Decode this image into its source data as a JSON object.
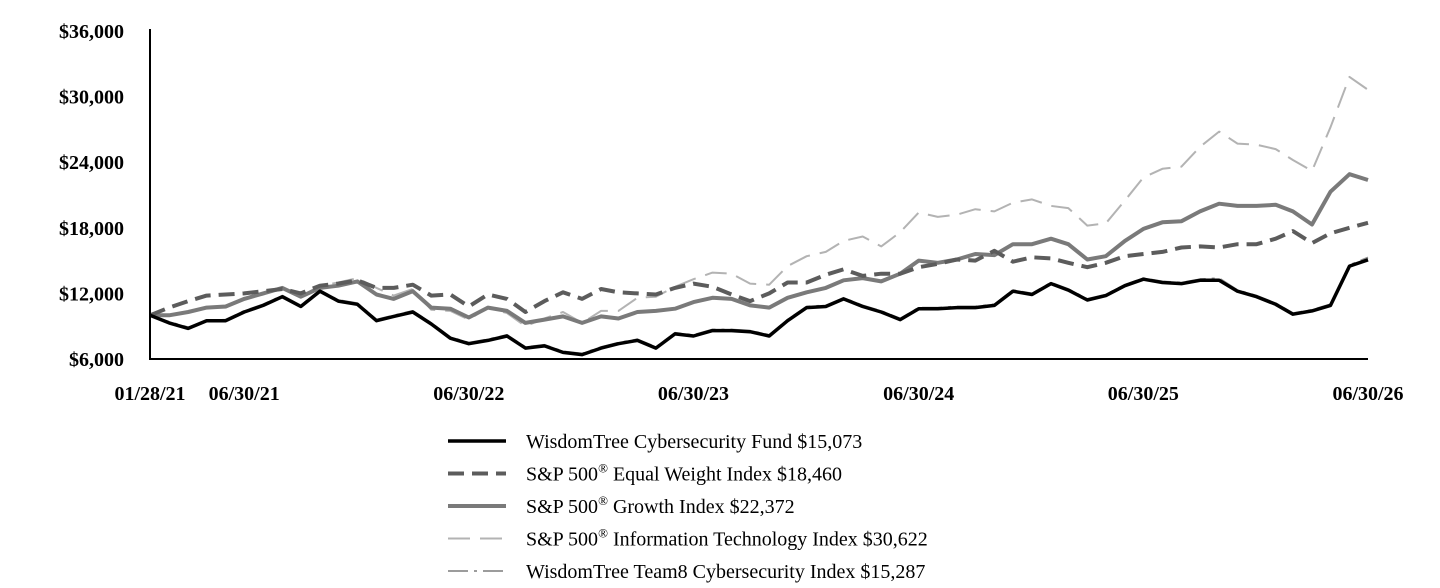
{
  "chart_data": {
    "type": "line",
    "title": "",
    "xlabel": "",
    "ylabel": "",
    "x_ticks": [
      "01/28/21",
      "06/30/21",
      "06/30/22",
      "06/30/23",
      "06/30/24",
      "06/30/25",
      "06/30/26"
    ],
    "x_tick_dates": [
      "2021-01-28",
      "2021-06-30",
      "2022-06-30",
      "2023-06-30",
      "2024-06-30",
      "2025-06-30",
      "2026-06-30"
    ],
    "y_ticks": [
      "$6,000",
      "$12,000",
      "$18,000",
      "$24,000",
      "$30,000",
      "$36,000"
    ],
    "y_tick_values": [
      6000,
      12000,
      18000,
      24000,
      30000,
      36000
    ],
    "xlim": [
      "2021-01-28",
      "2026-06-30"
    ],
    "ylim": [
      6000,
      36000
    ],
    "grid": false,
    "legend_position": "bottom",
    "x": [
      "2021-01-28",
      "2021-02-28",
      "2021-03-31",
      "2021-04-30",
      "2021-05-31",
      "2021-06-30",
      "2021-07-31",
      "2021-08-31",
      "2021-09-30",
      "2021-10-31",
      "2021-11-30",
      "2021-12-31",
      "2022-01-31",
      "2022-02-28",
      "2022-03-31",
      "2022-04-30",
      "2022-05-31",
      "2022-06-30",
      "2022-07-31",
      "2022-08-31",
      "2022-09-30",
      "2022-10-31",
      "2022-11-30",
      "2022-12-31",
      "2023-01-31",
      "2023-02-28",
      "2023-03-31",
      "2023-04-30",
      "2023-05-31",
      "2023-06-30",
      "2023-07-31",
      "2023-08-31",
      "2023-09-30",
      "2023-10-31",
      "2023-11-30",
      "2023-12-31",
      "2024-01-31",
      "2024-02-29",
      "2024-03-31",
      "2024-04-30",
      "2024-05-31",
      "2024-06-30",
      "2024-07-31",
      "2024-08-31",
      "2024-09-30",
      "2024-10-31",
      "2024-11-30",
      "2024-12-31",
      "2025-01-31",
      "2025-02-28",
      "2025-03-31",
      "2025-04-30",
      "2025-05-31",
      "2025-06-30",
      "2025-07-31",
      "2025-08-31",
      "2025-09-30",
      "2025-10-31",
      "2025-11-30",
      "2025-12-31",
      "2026-01-31",
      "2026-02-28",
      "2026-03-31",
      "2026-04-30",
      "2026-05-31",
      "2026-06-30"
    ],
    "series": [
      {
        "name": "WisdomTree Cybersecurity Fund",
        "legend_label_before_sup": "WisdomTree Cybersecurity Fund $15,073",
        "legend_sup": "",
        "legend_label_after_sup": "",
        "color": "#000000",
        "stroke_width": 3.5,
        "dash": "",
        "values": [
          10000,
          9300,
          8800,
          9500,
          9500,
          10300,
          10900,
          11700,
          10800,
          12200,
          11300,
          11000,
          9500,
          9900,
          10300,
          9200,
          7900,
          7400,
          7700,
          8100,
          7000,
          7200,
          6600,
          6400,
          7000,
          7400,
          7700,
          7000,
          8300,
          8100,
          8600,
          8600,
          8500,
          8100,
          9500,
          10700,
          10800,
          11500,
          10800,
          10300,
          9600,
          10600,
          10600,
          10700,
          10700,
          10900,
          12200,
          11900,
          12900,
          12300,
          11400,
          11800,
          12700,
          13300,
          13000,
          12900,
          13200,
          13200,
          12200,
          11700,
          11000,
          10100,
          10400,
          10900,
          14500,
          15073
        ]
      },
      {
        "name": "S&P 500® Equal Weight Index",
        "legend_label_before_sup": "S&P 500",
        "legend_sup": "®",
        "legend_label_after_sup": " Equal Weight Index $18,460",
        "color": "#5c5c5c",
        "stroke_width": 4,
        "dash": "16,8",
        "values": [
          10000,
          10700,
          11300,
          11800,
          11900,
          12000,
          12200,
          12400,
          12000,
          12700,
          12900,
          13200,
          12500,
          12500,
          12800,
          11800,
          11900,
          10800,
          11900,
          11500,
          10300,
          11300,
          12100,
          11500,
          12400,
          12100,
          12000,
          11900,
          12500,
          12900,
          12600,
          11900,
          11300,
          12000,
          13000,
          13000,
          13700,
          14200,
          13600,
          13800,
          13800,
          14400,
          14700,
          15100,
          15000,
          15900,
          14900,
          15300,
          15200,
          14800,
          14400,
          14800,
          15400,
          15600,
          15800,
          16200,
          16300,
          16200,
          16500,
          16500,
          17000,
          17700,
          16600,
          17500,
          18000,
          18460
        ]
      },
      {
        "name": "S&P 500® Growth Index",
        "legend_label_before_sup": "S&P 500",
        "legend_sup": "®",
        "legend_label_after_sup": " Growth Index $22,372",
        "color": "#7a7a7a",
        "stroke_width": 4,
        "dash": "",
        "values": [
          10000,
          10000,
          10300,
          10700,
          10800,
          11500,
          12000,
          12500,
          11700,
          12500,
          12700,
          13100,
          11900,
          11500,
          12200,
          10700,
          10600,
          9800,
          10700,
          10400,
          9300,
          9600,
          9900,
          9300,
          9900,
          9700,
          10300,
          10400,
          10600,
          11200,
          11600,
          11500,
          10900,
          10700,
          11600,
          12100,
          12500,
          13200,
          13400,
          13100,
          13800,
          15000,
          14800,
          15100,
          15600,
          15500,
          16500,
          16500,
          17000,
          16500,
          15100,
          15400,
          16800,
          17900,
          18500,
          18600,
          19500,
          20200,
          20000,
          20000,
          20100,
          19500,
          18300,
          21300,
          22900,
          22372
        ]
      },
      {
        "name": "S&P 500® Information Technology Index",
        "legend_label_before_sup": "S&P 500",
        "legend_sup": "®",
        "legend_label_after_sup": " Information Technology Index $30,622",
        "color": "#b3b3b3",
        "stroke_width": 2,
        "dash": "22,10",
        "values": [
          10000,
          10000,
          10300,
          10700,
          10700,
          11600,
          11900,
          12500,
          11700,
          12700,
          13000,
          13400,
          12500,
          11800,
          12400,
          10500,
          10400,
          9600,
          10700,
          10200,
          9000,
          9700,
          10300,
          9300,
          10400,
          10400,
          11600,
          11700,
          12600,
          13300,
          13900,
          13800,
          12900,
          12800,
          14500,
          15400,
          15800,
          16800,
          17200,
          16300,
          17600,
          19400,
          19000,
          19200,
          19700,
          19500,
          20300,
          20600,
          20000,
          19800,
          18200,
          18400,
          20500,
          22600,
          23400,
          23600,
          25400,
          26800,
          25700,
          25600,
          25200,
          24200,
          23200,
          27200,
          31800,
          30622
        ]
      },
      {
        "name": "WisdomTree Team8 Cybersecurity Index",
        "legend_label_before_sup": "WisdomTree Team8 Cybersecurity Index $15,287",
        "legend_sup": "",
        "legend_label_after_sup": "",
        "color": "#8f8f8f",
        "stroke_width": 1.8,
        "dash": "20,6,3,6",
        "values": [
          10000,
          9400,
          8900,
          9500,
          9600,
          10400,
          11000,
          11800,
          10900,
          12300,
          11400,
          11100,
          9600,
          10000,
          10400,
          9300,
          8000,
          7500,
          7800,
          8200,
          7100,
          7300,
          6700,
          6500,
          7100,
          7500,
          7800,
          7100,
          8400,
          8200,
          8700,
          8700,
          8600,
          8200,
          9600,
          10800,
          10900,
          11600,
          10900,
          10400,
          9700,
          10700,
          10700,
          10800,
          10800,
          11000,
          12300,
          12000,
          13000,
          12400,
          11500,
          11900,
          12800,
          13400,
          13100,
          13000,
          13300,
          13400,
          12300,
          11800,
          11100,
          10200,
          10500,
          11000,
          14600,
          15287
        ]
      }
    ]
  }
}
